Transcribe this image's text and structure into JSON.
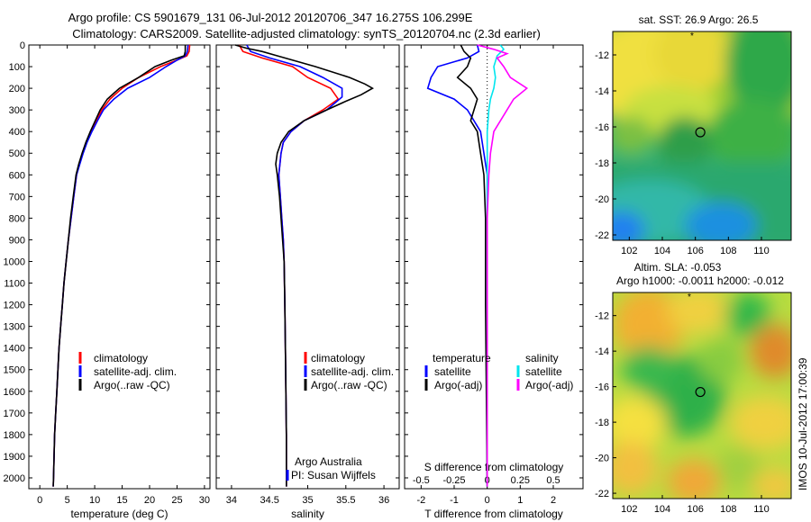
{
  "title_line1": "Argo profile: CS 5901679_131 06-Jul-2012 20120706_347 16.275S 106.299E",
  "title_line2": "Climatology: CARS2009. Satellite-adjusted climatology: synTS_20120704.nc (2.3d earlier)",
  "depth_ticks": [
    "0",
    "100",
    "200",
    "300",
    "400",
    "500",
    "600",
    "700",
    "800",
    "900",
    "1000",
    "1100",
    "1200",
    "1300",
    "1400",
    "1500",
    "1600",
    "1700",
    "1800",
    "1900",
    "2000"
  ],
  "legend_labels": {
    "climatology": "climatology",
    "satellite": "satellite-adj. clim.",
    "argo": "Argo(..raw -QC)"
  },
  "credits": {
    "line1": "Argo Australia",
    "line2": "PI: Susan Wijffels"
  },
  "diff_legend": {
    "temp_header": "temperature",
    "sal_header": "salinity",
    "satellite": "satellite",
    "argo": "Argo(-adj)"
  },
  "colors": {
    "climatology": "#ff0000",
    "satellite": "#0000ff",
    "argo": "#000000",
    "sal_satellite": "#00e5ee",
    "sal_argo": "#ff00ff"
  },
  "maps": {
    "sst_title": "sat. SST: 26.9 Argo: 26.5",
    "sla_title1": "Altim. SLA: -0.053",
    "sla_title2": "Argo h1000: -0.0011 h2000: -0.012",
    "x_ticks": [
      "102",
      "104",
      "106",
      "108",
      "110"
    ],
    "y_ticks": [
      "-12",
      "-14",
      "-16",
      "-18",
      "-20",
      "-22"
    ],
    "float_lon": 106.3,
    "float_lat": -16.3
  },
  "timestamp": "IMOS 10-Jul-2012 17:00:39",
  "chart_data": [
    {
      "type": "line",
      "xlabel": "temperature (deg C)",
      "ylabel": "",
      "xlim": [
        -2,
        31
      ],
      "ylim": [
        2050,
        0
      ],
      "x_ticks": [
        "0",
        "5",
        "10",
        "15",
        "20",
        "25",
        "30"
      ],
      "series": [
        {
          "name": "climatology",
          "color": "#ff0000",
          "points": [
            [
              27.3,
              0
            ],
            [
              27.2,
              30
            ],
            [
              26.8,
              50
            ],
            [
              25,
              70
            ],
            [
              22,
              100
            ],
            [
              18,
              150
            ],
            [
              15,
              200
            ],
            [
              12.8,
              250
            ],
            [
              11.3,
              300
            ],
            [
              10.3,
              350
            ],
            [
              9.4,
              400
            ],
            [
              8.5,
              450
            ],
            [
              7.8,
              500
            ],
            [
              7.2,
              550
            ],
            [
              6.7,
              600
            ],
            [
              6.2,
              700
            ],
            [
              5.7,
              800
            ],
            [
              5.2,
              900
            ],
            [
              4.8,
              1000
            ],
            [
              4.4,
              1100
            ],
            [
              4.1,
              1200
            ],
            [
              3.8,
              1300
            ],
            [
              3.5,
              1400
            ],
            [
              3.3,
              1500
            ],
            [
              3.1,
              1600
            ],
            [
              2.9,
              1700
            ],
            [
              2.7,
              1800
            ],
            [
              2.6,
              1900
            ],
            [
              2.5,
              2000
            ],
            [
              2.45,
              2040
            ]
          ]
        },
        {
          "name": "satellite-adj. clim.",
          "color": "#0000ff",
          "points": [
            [
              27.0,
              0
            ],
            [
              26.9,
              30
            ],
            [
              26.5,
              50
            ],
            [
              25,
              70
            ],
            [
              23,
              100
            ],
            [
              20,
              150
            ],
            [
              16,
              200
            ],
            [
              13.5,
              250
            ],
            [
              11.6,
              300
            ],
            [
              10.5,
              350
            ],
            [
              9.5,
              400
            ],
            [
              8.6,
              450
            ],
            [
              7.9,
              500
            ],
            [
              7.3,
              550
            ],
            [
              6.7,
              600
            ],
            [
              6.2,
              700
            ],
            [
              5.7,
              800
            ],
            [
              5.2,
              900
            ],
            [
              4.8,
              1000
            ],
            [
              4.4,
              1100
            ],
            [
              4.1,
              1200
            ],
            [
              3.8,
              1300
            ],
            [
              3.5,
              1400
            ],
            [
              3.3,
              1500
            ],
            [
              3.1,
              1600
            ],
            [
              2.9,
              1700
            ],
            [
              2.7,
              1800
            ],
            [
              2.6,
              1900
            ],
            [
              2.5,
              2000
            ],
            [
              2.45,
              2040
            ]
          ]
        },
        {
          "name": "Argo(..raw -QC)",
          "color": "#000000",
          "points": [
            [
              26.5,
              0
            ],
            [
              26.5,
              30
            ],
            [
              26.3,
              50
            ],
            [
              24,
              70
            ],
            [
              21,
              100
            ],
            [
              18,
              150
            ],
            [
              14.5,
              200
            ],
            [
              12.3,
              250
            ],
            [
              11,
              300
            ],
            [
              10.1,
              350
            ],
            [
              9.2,
              400
            ],
            [
              8.4,
              450
            ],
            [
              7.7,
              500
            ],
            [
              7.1,
              550
            ],
            [
              6.6,
              600
            ],
            [
              6.1,
              700
            ],
            [
              5.6,
              800
            ],
            [
              5.2,
              900
            ],
            [
              4.8,
              1000
            ],
            [
              4.4,
              1100
            ],
            [
              4.1,
              1200
            ],
            [
              3.8,
              1300
            ],
            [
              3.5,
              1400
            ],
            [
              3.3,
              1500
            ],
            [
              3.1,
              1600
            ],
            [
              2.9,
              1700
            ],
            [
              2.7,
              1800
            ],
            [
              2.6,
              1900
            ],
            [
              2.5,
              2000
            ],
            [
              2.45,
              2040
            ]
          ]
        }
      ]
    },
    {
      "type": "line",
      "xlabel": "salinity",
      "ylabel": "",
      "xlim": [
        33.8,
        36.2
      ],
      "ylim": [
        2050,
        0
      ],
      "x_ticks": [
        "34",
        "34.5",
        "35",
        "35.5",
        "36"
      ],
      "series": [
        {
          "name": "climatology",
          "color": "#ff0000",
          "points": [
            [
              34.1,
              0
            ],
            [
              34.15,
              30
            ],
            [
              34.4,
              60
            ],
            [
              34.8,
              100
            ],
            [
              35.0,
              150
            ],
            [
              35.3,
              200
            ],
            [
              35.4,
              250
            ],
            [
              35.2,
              300
            ],
            [
              34.95,
              350
            ],
            [
              34.78,
              400
            ],
            [
              34.68,
              450
            ],
            [
              34.65,
              500
            ],
            [
              34.62,
              600
            ],
            [
              34.64,
              700
            ],
            [
              34.66,
              800
            ],
            [
              34.68,
              900
            ],
            [
              34.69,
              1000
            ],
            [
              34.7,
              1200
            ],
            [
              34.71,
              1500
            ],
            [
              34.72,
              1800
            ],
            [
              34.72,
              2040
            ]
          ]
        },
        {
          "name": "satellite-adj. clim.",
          "color": "#0000ff",
          "points": [
            [
              34.2,
              0
            ],
            [
              34.25,
              30
            ],
            [
              34.5,
              60
            ],
            [
              34.9,
              100
            ],
            [
              35.2,
              150
            ],
            [
              35.45,
              200
            ],
            [
              35.45,
              240
            ],
            [
              35.25,
              300
            ],
            [
              34.95,
              350
            ],
            [
              34.78,
              400
            ],
            [
              34.68,
              450
            ],
            [
              34.65,
              500
            ],
            [
              34.62,
              600
            ],
            [
              34.64,
              700
            ],
            [
              34.66,
              800
            ],
            [
              34.68,
              900
            ],
            [
              34.69,
              1000
            ],
            [
              34.7,
              1200
            ],
            [
              34.71,
              1500
            ],
            [
              34.72,
              1800
            ],
            [
              34.72,
              2040
            ]
          ]
        },
        {
          "name": "Argo(..raw -QC)",
          "color": "#000000",
          "points": [
            [
              34.05,
              0
            ],
            [
              34.2,
              15
            ],
            [
              34.4,
              30
            ],
            [
              34.6,
              50
            ],
            [
              35.1,
              100
            ],
            [
              35.55,
              150
            ],
            [
              35.75,
              180
            ],
            [
              35.85,
              200
            ],
            [
              35.7,
              230
            ],
            [
              35.5,
              260
            ],
            [
              35.25,
              300
            ],
            [
              34.95,
              350
            ],
            [
              34.75,
              400
            ],
            [
              34.65,
              450
            ],
            [
              34.6,
              500
            ],
            [
              34.58,
              550
            ],
            [
              34.6,
              600
            ],
            [
              34.63,
              700
            ],
            [
              34.65,
              800
            ],
            [
              34.67,
              900
            ],
            [
              34.69,
              1000
            ],
            [
              34.7,
              1200
            ],
            [
              34.71,
              1500
            ],
            [
              34.72,
              1800
            ],
            [
              34.72,
              2040
            ]
          ]
        }
      ]
    },
    {
      "type": "line",
      "xlabel": "T difference from climatology",
      "x2label": "S difference from climatology",
      "xlim": [
        -2.5,
        2.9
      ],
      "ylim": [
        2050,
        0
      ],
      "x_ticks": [
        "-2",
        "-1",
        "0",
        "1",
        "2"
      ],
      "x2_ticks": [
        "-0.5",
        "-0.25",
        "0",
        "0.25",
        "0.5"
      ],
      "series": [
        {
          "name": "temperature satellite",
          "color": "#0000ff",
          "points": [
            [
              -0.3,
              0
            ],
            [
              -0.25,
              30
            ],
            [
              -0.6,
              60
            ],
            [
              -1.5,
              100
            ],
            [
              -1.7,
              150
            ],
            [
              -1.8,
              200
            ],
            [
              -1.0,
              250
            ],
            [
              -0.6,
              300
            ],
            [
              -0.2,
              400
            ],
            [
              -0.1,
              500
            ],
            [
              0,
              600
            ],
            [
              0,
              800
            ],
            [
              0,
              2040
            ]
          ]
        },
        {
          "name": "temperature Argo(-adj)",
          "color": "#000000",
          "points": [
            [
              -0.8,
              0
            ],
            [
              -0.7,
              30
            ],
            [
              -0.5,
              60
            ],
            [
              -0.6,
              100
            ],
            [
              -0.9,
              150
            ],
            [
              -0.5,
              200
            ],
            [
              -0.3,
              250
            ],
            [
              -0.4,
              300
            ],
            [
              -0.5,
              350
            ],
            [
              -0.3,
              400
            ],
            [
              -0.2,
              500
            ],
            [
              -0.1,
              600
            ],
            [
              -0.05,
              800
            ],
            [
              -0.05,
              1200
            ],
            [
              0,
              2040
            ]
          ]
        },
        {
          "name": "salinity satellite",
          "color": "#00e5ee",
          "points": [
            [
              0.4,
              0
            ],
            [
              0.5,
              20
            ],
            [
              0.3,
              50
            ],
            [
              0.2,
              100
            ],
            [
              0.25,
              150
            ],
            [
              0.2,
              200
            ],
            [
              0.1,
              250
            ],
            [
              0.05,
              300
            ],
            [
              0,
              400
            ],
            [
              0,
              600
            ],
            [
              0,
              2040
            ]
          ]
        },
        {
          "name": "salinity Argo(-adj)",
          "color": "#ff00ff",
          "points": [
            [
              -0.3,
              0
            ],
            [
              0.2,
              20
            ],
            [
              0.6,
              40
            ],
            [
              0.3,
              60
            ],
            [
              0.5,
              100
            ],
            [
              0.7,
              150
            ],
            [
              1.2,
              200
            ],
            [
              0.8,
              250
            ],
            [
              0.6,
              300
            ],
            [
              0.4,
              350
            ],
            [
              0.2,
              400
            ],
            [
              0.1,
              500
            ],
            [
              0.05,
              600
            ],
            [
              0,
              800
            ],
            [
              0,
              2040
            ]
          ]
        }
      ]
    }
  ]
}
